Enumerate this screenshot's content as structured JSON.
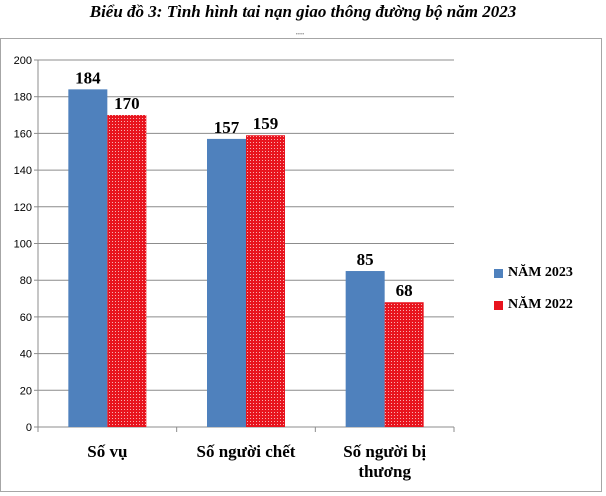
{
  "chart_data": {
    "type": "bar",
    "title": "Biểu đồ 3: Tình hình tai nạn giao thông đường bộ năm 2023",
    "categories": [
      [
        "Số vụ"
      ],
      [
        "Số người chết"
      ],
      [
        "Số người bị",
        "thương"
      ]
    ],
    "series": [
      {
        "name": "NĂM 2023",
        "values": [
          184,
          157,
          85
        ],
        "color": "#4f81bd"
      },
      {
        "name": "NĂM 2022",
        "values": [
          170,
          159,
          68
        ],
        "color": "#e8141e"
      }
    ],
    "ylim": [
      0,
      200
    ],
    "yticks": [
      0,
      20,
      40,
      60,
      80,
      100,
      120,
      140,
      160,
      180,
      200
    ],
    "grid": true,
    "legend_position": "right"
  }
}
